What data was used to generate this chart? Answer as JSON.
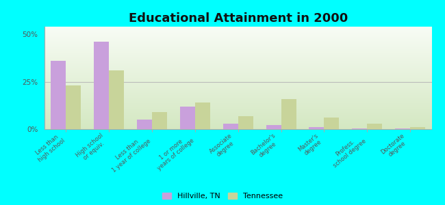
{
  "title": "Educational Attainment in 2000",
  "categories": [
    "Less than\nhigh school",
    "High school\nor equiv.",
    "Less than\n1 year of college",
    "1 or more\nyears of college",
    "Associate\ndegree",
    "Bachelor's\ndegree",
    "Master's\ndegree",
    "Profess.\nschool degree",
    "Doctorate\ndegree"
  ],
  "hillville": [
    36,
    46,
    5,
    12,
    3,
    2,
    1,
    0.3,
    0.3
  ],
  "tennessee": [
    23,
    31,
    9,
    14,
    7,
    16,
    6,
    3,
    1
  ],
  "hillville_color": "#c9a0dc",
  "tennessee_color": "#c8d49a",
  "bg_bottom_color": "#d4e8c2",
  "bg_top_color": "#f5faf0",
  "outer_background": "#00ffff",
  "yticks": [
    0,
    25,
    50
  ],
  "ylim": [
    0,
    54
  ],
  "bar_width": 0.35,
  "title_fontsize": 13,
  "tick_fontsize": 6,
  "legend_hillville": "Hillville, TN",
  "legend_tennessee": "Tennessee"
}
